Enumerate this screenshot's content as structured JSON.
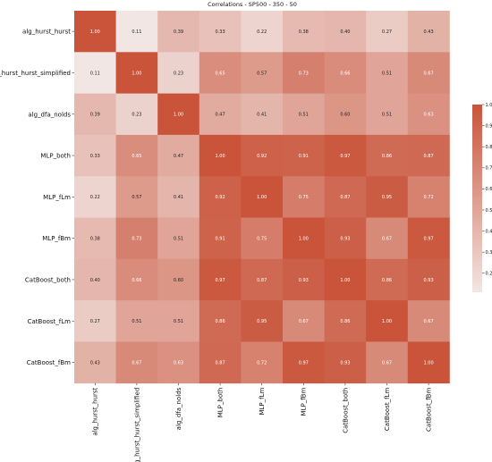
{
  "chart_data": {
    "type": "heatmap",
    "title": "Correlations - SP500 - 350 - 50",
    "row_labels": [
      "alg_hurst_hurst",
      "alg_hurst_hurst_simplified",
      "alg_dfa_nolds",
      "MLP_both",
      "MLP_fLm",
      "MLP_fBm",
      "CatBoost_both",
      "CatBoost_fLm",
      "CatBoost_fBm"
    ],
    "col_labels": [
      "alg_hurst_hurst",
      "alg_hurst_hurst_simplified",
      "alg_dfa_nolds",
      "MLP_both",
      "MLP_fLm",
      "MLP_fBm",
      "CatBoost_both",
      "CatBoost_fLm",
      "CatBoost_fBm"
    ],
    "values": [
      [
        1.0,
        0.11,
        0.39,
        0.33,
        0.22,
        0.38,
        0.4,
        0.27,
        0.43
      ],
      [
        0.11,
        1.0,
        0.23,
        0.65,
        0.57,
        0.73,
        0.66,
        0.51,
        0.67
      ],
      [
        0.39,
        0.23,
        1.0,
        0.47,
        0.41,
        0.51,
        0.6,
        0.51,
        0.63
      ],
      [
        0.33,
        0.65,
        0.47,
        1.0,
        0.92,
        0.91,
        0.97,
        0.86,
        0.87
      ],
      [
        0.22,
        0.57,
        0.41,
        0.92,
        1.0,
        0.75,
        0.87,
        0.95,
        0.72
      ],
      [
        0.38,
        0.73,
        0.51,
        0.91,
        0.75,
        1.0,
        0.93,
        0.67,
        0.97
      ],
      [
        0.4,
        0.66,
        0.6,
        0.97,
        0.87,
        0.93,
        1.0,
        0.86,
        0.93
      ],
      [
        0.27,
        0.51,
        0.51,
        0.86,
        0.95,
        0.67,
        0.86,
        1.0,
        0.67
      ],
      [
        0.43,
        0.67,
        0.63,
        0.87,
        0.72,
        0.97,
        0.93,
        0.67,
        1.0
      ]
    ],
    "value_labels": [
      [
        "1.00",
        "0.11",
        "0.39",
        "0.33",
        "0.22",
        "0.38",
        "0.40",
        "0.27",
        "0.43"
      ],
      [
        "0.11",
        "1.00",
        "0.23",
        "0.65",
        "0.57",
        "0.73",
        "0.66",
        "0.51",
        "0.67"
      ],
      [
        "0.39",
        "0.23",
        "1.00",
        "0.47",
        "0.41",
        "0.51",
        "0.60",
        "0.51",
        "0.63"
      ],
      [
        "0.33",
        "0.65",
        "0.47",
        "1.00",
        "0.92",
        "0.91",
        "0.97",
        "0.86",
        "0.87"
      ],
      [
        "0.22",
        "0.57",
        "0.41",
        "0.92",
        "1.00",
        "0.75",
        "0.87",
        "0.95",
        "0.72"
      ],
      [
        "0.38",
        "0.73",
        "0.51",
        "0.91",
        "0.75",
        "1.00",
        "0.93",
        "0.67",
        "0.97"
      ],
      [
        "0.40",
        "0.66",
        "0.60",
        "0.97",
        "0.87",
        "0.93",
        "1.00",
        "0.86",
        "0.93"
      ],
      [
        "0.27",
        "0.51",
        "0.51",
        "0.86",
        "0.95",
        "0.67",
        "0.86",
        "1.00",
        "0.67"
      ],
      [
        "0.43",
        "0.67",
        "0.63",
        "0.87",
        "0.72",
        "0.97",
        "0.93",
        "0.67",
        "1.00"
      ]
    ],
    "colorbar": {
      "ticks": [
        0.2,
        0.3,
        0.4,
        0.5,
        0.6,
        0.7,
        0.8,
        0.9,
        1.0
      ],
      "tick_labels": [
        "0.2",
        "0.3",
        "0.4",
        "0.5",
        "0.6",
        "0.7",
        "0.8",
        "0.9",
        "1.0"
      ],
      "range": [
        0.11,
        1.0
      ]
    },
    "colors": {
      "low": "#f2e6e4",
      "high": "#c9543a"
    }
  }
}
